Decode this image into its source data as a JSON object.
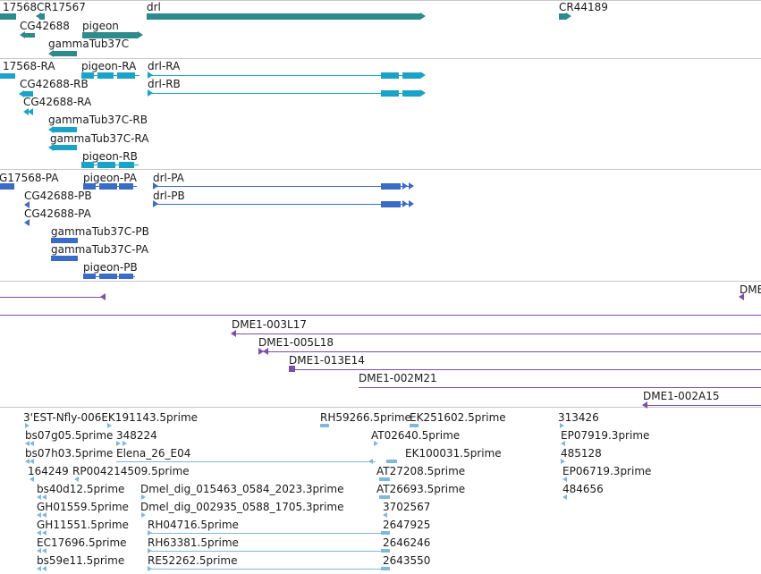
{
  "colors": {
    "gene": "#2e8b8b",
    "transcript": "#1aa3c8",
    "protein": "#3a6bc8",
    "clone": "#7a4fae",
    "est": "#7fb8dc",
    "separator": "#c8c8c8"
  },
  "genes": {
    "labels": [
      "17568",
      "CR17567",
      "CG42688",
      "pigeon",
      "gammaTub37C",
      "drl",
      "CR44189"
    ]
  },
  "transcripts": {
    "labels": [
      "17568-RA",
      "pigeon-RA",
      "drl-RA",
      "CG42688-RB",
      "drl-RB",
      "CG42688-RA",
      "gammaTub37C-RB",
      "gammaTub37C-RA",
      "pigeon-RB"
    ]
  },
  "proteins": {
    "labels": [
      "G17568-PA",
      "pigeon-PA",
      "drl-PA",
      "CG42688-PB",
      "drl-PB",
      "CG42688-PA",
      "gammaTub37C-PB",
      "gammaTub37C-PA",
      "pigeon-PB"
    ]
  },
  "clones": {
    "labels": [
      "DME",
      "DME1-003L17",
      "DME1-005L18",
      "DME1-013E14",
      "DME1-002M21",
      "DME1-002A15"
    ]
  },
  "ests": {
    "labels": [
      "3'EST-Nfly-006EK191143.5prime",
      "RH59266.5prime",
      "EK251602.5prime",
      "313426",
      "bs07g05.5prime",
      "348224",
      "AT02640.5prime",
      "EP07919.3prime",
      "bs07h03.5prime",
      "Elena_26_E04",
      "EK100031.5prime",
      "485128",
      "164249",
      "RP004214509.5prime",
      "AT27208.5prime",
      "EP06719.3prime",
      "bs40d12.5prime",
      "Dmel_dig_015463_0584_2023.3prime",
      "AT26693.5prime",
      "484656",
      "GH01559.5prime",
      "Dmel_dig_002935_0588_1705.3prime",
      "3702567",
      "GH11551.5prime",
      "RH04716.5prime",
      "2647925",
      "EC17696.5prime",
      "RH63381.5prime",
      "2646246",
      "bs59e11.5prime",
      "RE52262.5prime",
      "2643550"
    ]
  }
}
